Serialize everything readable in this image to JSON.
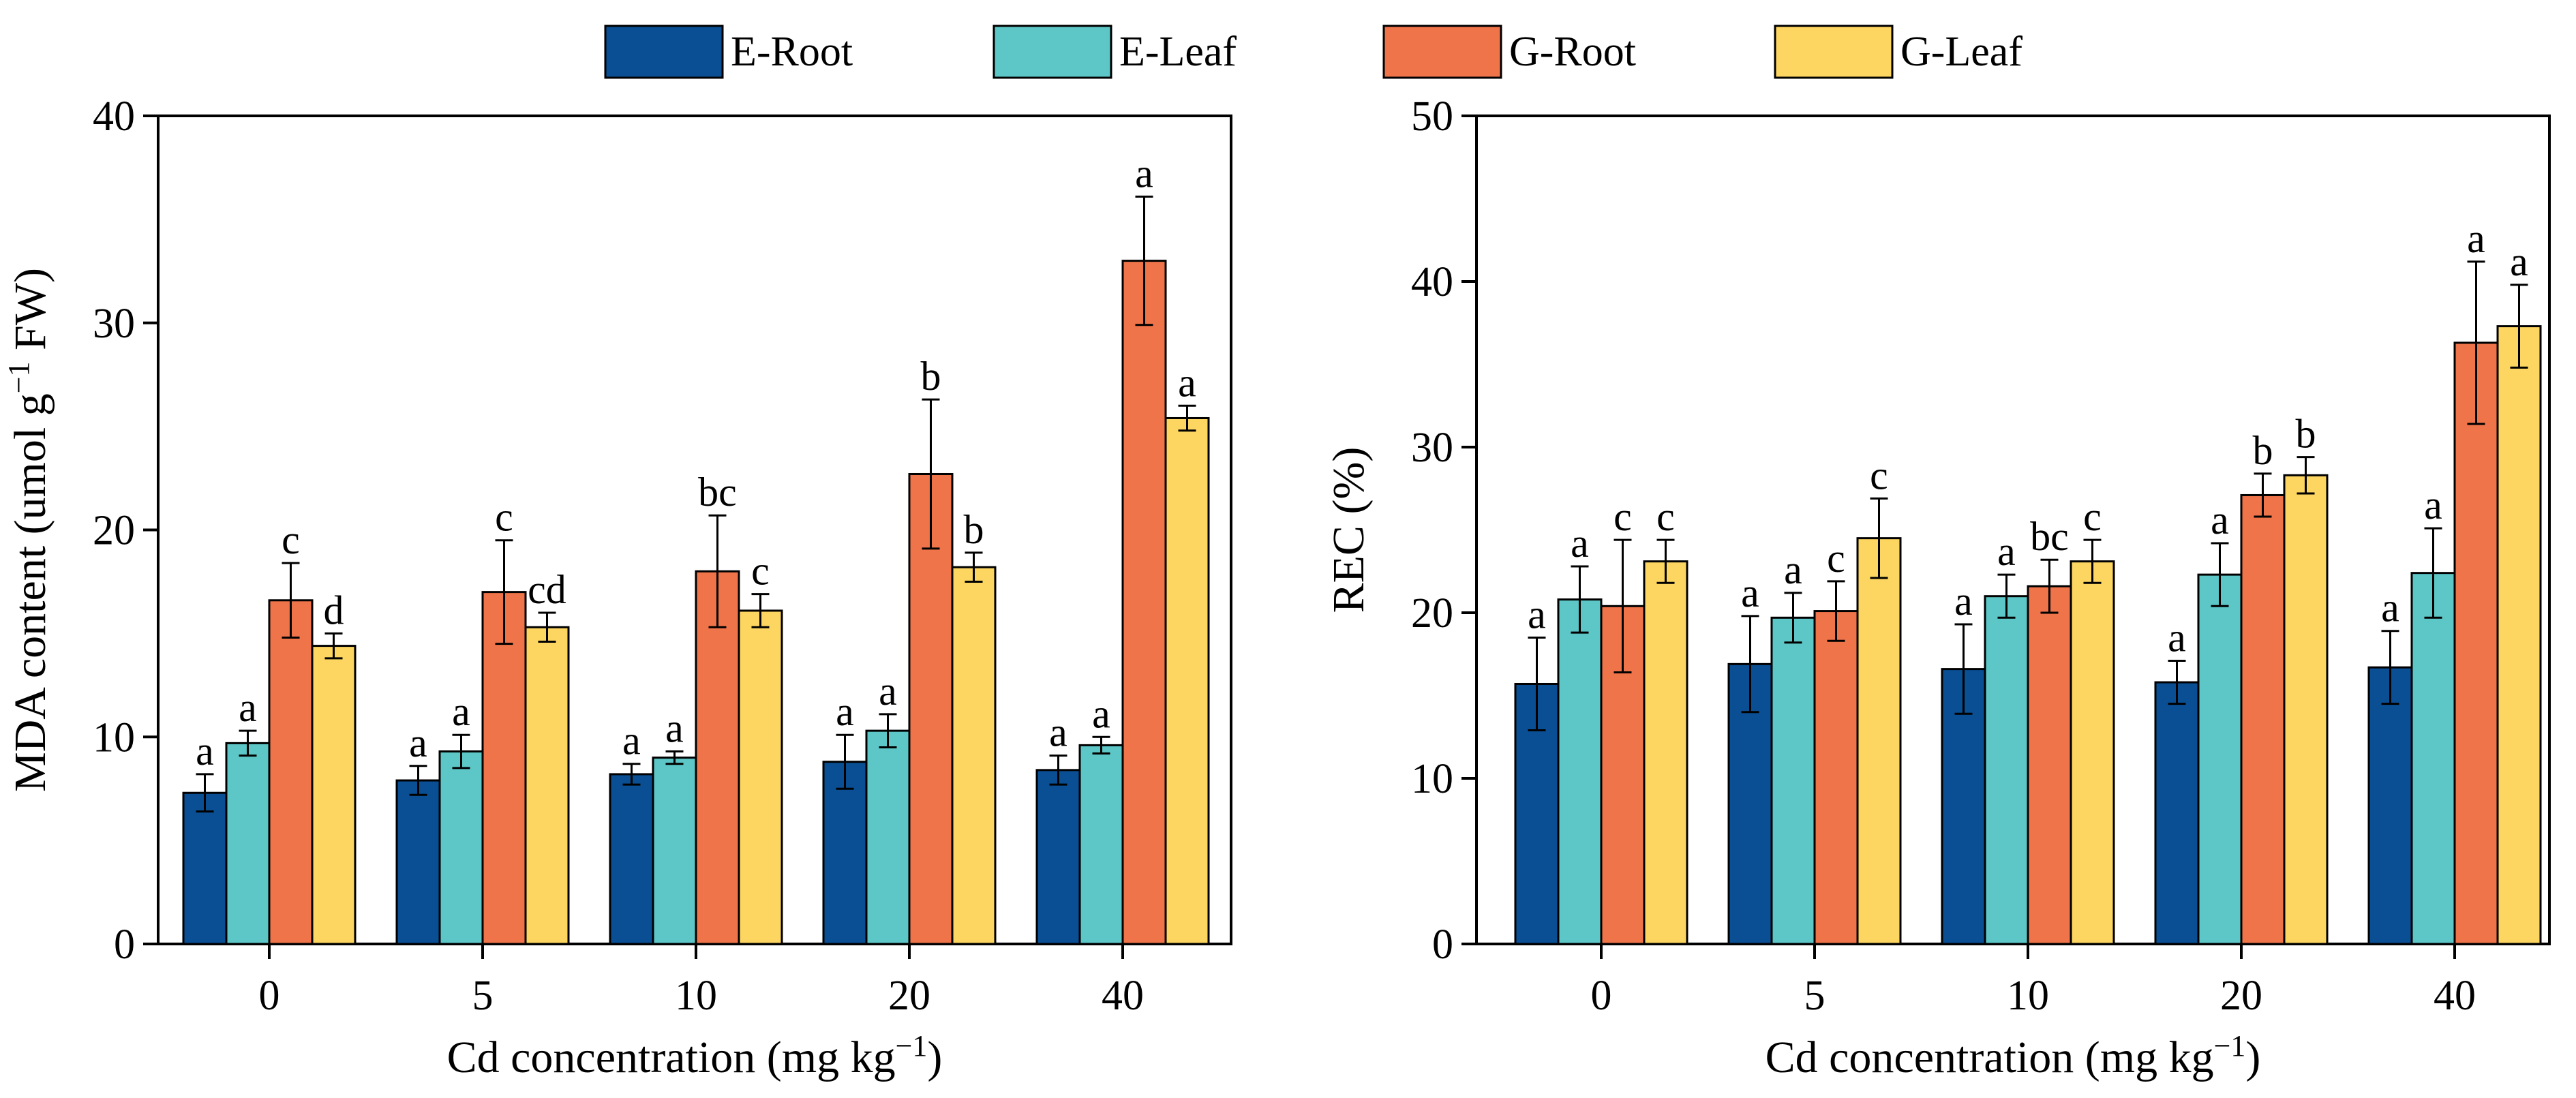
{
  "legend": [
    {
      "name": "E-Root",
      "color": "#0A4F93"
    },
    {
      "name": "E-Leaf",
      "color": "#5CC7C6"
    },
    {
      "name": "G-Root",
      "color": "#F0744A"
    },
    {
      "name": "G-Leaf",
      "color": "#FDD561"
    }
  ],
  "chart_data": [
    {
      "type": "bar",
      "title": "",
      "xlabel": "Cd concentration (mg kg",
      "xlabel_sup": "−1",
      "xlabel_end": ")",
      "ylabel": "MDA content (umol g",
      "ylabel_sup": "−1",
      "ylabel_end": " FW)",
      "categories": [
        "0",
        "5",
        "10",
        "20",
        "40"
      ],
      "ylim": [
        0,
        40
      ],
      "yticks": [
        "0",
        "10",
        "20",
        "30",
        "40"
      ],
      "series": [
        {
          "name": "E-Root",
          "color": "#0A4F93",
          "values": [
            7.3,
            7.9,
            8.2,
            8.8,
            8.4
          ],
          "errors": [
            0.9,
            0.7,
            0.5,
            1.3,
            0.7
          ],
          "labels": [
            "a",
            "a",
            "a",
            "a",
            "a"
          ]
        },
        {
          "name": "E-Leaf",
          "color": "#5CC7C6",
          "values": [
            9.7,
            9.3,
            9.0,
            10.3,
            9.6
          ],
          "errors": [
            0.6,
            0.8,
            0.3,
            0.8,
            0.4
          ],
          "labels": [
            "a",
            "a",
            "a",
            "a",
            "a"
          ]
        },
        {
          "name": "G-Root",
          "color": "#F0744A",
          "values": [
            16.6,
            17.0,
            18.0,
            22.7,
            33.0
          ],
          "errors": [
            1.8,
            2.5,
            2.7,
            3.6,
            3.1
          ],
          "labels": [
            "c",
            "c",
            "bc",
            "b",
            "a"
          ]
        },
        {
          "name": "G-Leaf",
          "color": "#FDD561",
          "values": [
            14.4,
            15.3,
            16.1,
            18.2,
            25.4
          ],
          "errors": [
            0.6,
            0.7,
            0.8,
            0.7,
            0.6
          ],
          "labels": [
            "d",
            "cd",
            "c",
            "b",
            "a"
          ]
        }
      ]
    },
    {
      "type": "bar",
      "title": "",
      "xlabel": "Cd concentration (mg kg",
      "xlabel_sup": "−1",
      "xlabel_end": ")",
      "ylabel": "REC (%)",
      "ylabel_sup": "",
      "ylabel_end": "",
      "categories": [
        "0",
        "5",
        "10",
        "20",
        "40"
      ],
      "ylim": [
        0,
        50
      ],
      "yticks": [
        "0",
        "10",
        "20",
        "30",
        "40",
        "50"
      ],
      "series": [
        {
          "name": "E-Root",
          "color": "#0A4F93",
          "values": [
            15.7,
            16.9,
            16.6,
            15.8,
            16.7
          ],
          "errors": [
            2.8,
            2.9,
            2.7,
            1.3,
            2.2
          ],
          "labels": [
            "a",
            "a",
            "a",
            "a",
            "a"
          ]
        },
        {
          "name": "E-Leaf",
          "color": "#5CC7C6",
          "values": [
            20.8,
            19.7,
            21.0,
            22.3,
            22.4
          ],
          "errors": [
            2.0,
            1.5,
            1.3,
            1.9,
            2.7
          ],
          "labels": [
            "a",
            "a",
            "a",
            "a",
            "a"
          ]
        },
        {
          "name": "G-Root",
          "color": "#F0744A",
          "values": [
            20.4,
            20.1,
            21.6,
            27.1,
            36.3
          ],
          "errors": [
            4.0,
            1.8,
            1.6,
            1.3,
            4.9
          ],
          "labels": [
            "c",
            "c",
            "bc",
            "b",
            "a"
          ]
        },
        {
          "name": "G-Leaf",
          "color": "#FDD561",
          "values": [
            23.1,
            24.5,
            23.1,
            28.3,
            37.3
          ],
          "errors": [
            1.3,
            2.4,
            1.3,
            1.1,
            2.5
          ],
          "labels": [
            "c",
            "c",
            "c",
            "b",
            "a"
          ]
        }
      ]
    }
  ]
}
